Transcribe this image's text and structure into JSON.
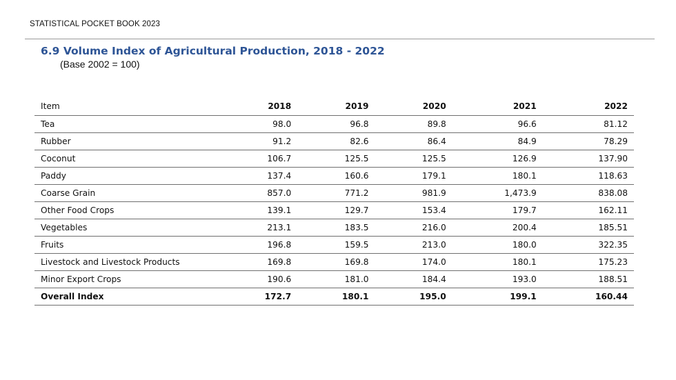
{
  "header": {
    "publication": "STATISTICAL POCKET BOOK 2023"
  },
  "table_title": "6.9 Volume Index of Agricultural Production, 2018 - 2022",
  "table_subtitle": "(Base 2002 = 100)",
  "table": {
    "columns": [
      "Item",
      "2018",
      "2019",
      "2020",
      "2021",
      "2022"
    ],
    "rows": [
      [
        "Tea",
        "98.0",
        "96.8",
        "89.8",
        "96.6",
        "81.12"
      ],
      [
        "Rubber",
        "91.2",
        "82.6",
        "86.4",
        "84.9",
        "78.29"
      ],
      [
        "Coconut",
        "106.7",
        "125.5",
        "125.5",
        "126.9",
        "137.90"
      ],
      [
        "Paddy",
        "137.4",
        "160.6",
        "179.1",
        "180.1",
        "118.63"
      ],
      [
        "Coarse Grain",
        "857.0",
        "771.2",
        "981.9",
        "1,473.9",
        "838.08"
      ],
      [
        "Other Food Crops",
        "139.1",
        "129.7",
        "153.4",
        "179.7",
        "162.11"
      ],
      [
        "Vegetables",
        "213.1",
        "183.5",
        "216.0",
        "200.4",
        "185.51"
      ],
      [
        "Fruits",
        "196.8",
        "159.5",
        "213.0",
        "180.0",
        "322.35"
      ],
      [
        "Livestock and Livestock Products",
        "169.8",
        "169.8",
        "174.0",
        "180.1",
        "175.23"
      ],
      [
        "Minor Export Crops",
        "190.6",
        "181.0",
        "184.4",
        "193.0",
        "188.51"
      ],
      [
        "Overall Index",
        "172.7",
        "180.1",
        "195.0",
        "199.1",
        "160.44"
      ]
    ]
  },
  "colors": {
    "title": "#2e5596",
    "rule": "#6f6f6f"
  }
}
